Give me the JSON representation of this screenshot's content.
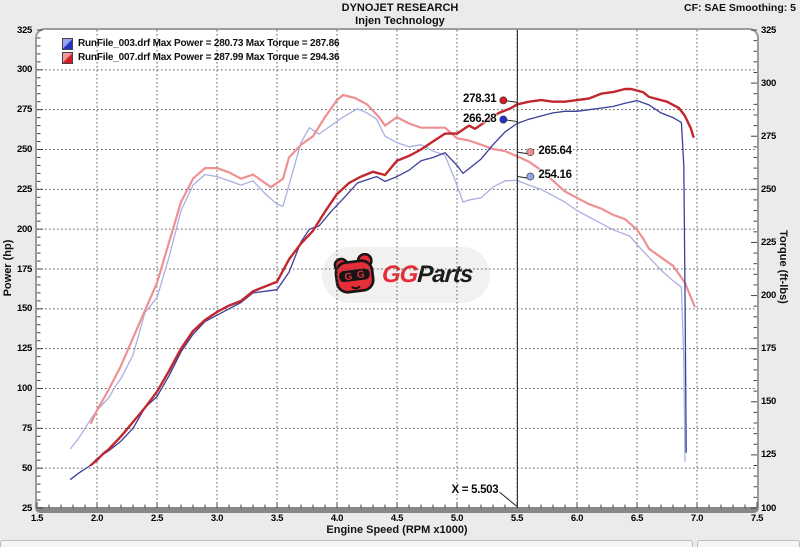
{
  "header": {
    "title": "DYNOJET RESEARCH",
    "subtitle": "Injen Technology",
    "correction_info": "CF: SAE  Smoothing: 5"
  },
  "legend": {
    "entries": [
      {
        "text": "RunFile_003.drf Max Power = 280.73 Max Torque = 287.86",
        "swatch_light": "#9aa6f2",
        "swatch_dark": "#2531c9"
      },
      {
        "text": "RunFile_007.drf Max Power = 287.99 Max Torque = 294.36",
        "swatch_light": "#f5989b",
        "swatch_dark": "#d21d22"
      }
    ]
  },
  "watermark": {
    "brand_first": "GG",
    "brand_second": "Parts",
    "pill_bg": "#f2f1ef",
    "red": "#e62e39",
    "black": "#1c1c1c"
  },
  "cursor": {
    "label": "X = 5.503",
    "x": 5.503,
    "readouts": [
      {
        "text": "278.31",
        "value": 278.31,
        "axis": "left",
        "side": "left",
        "color": "#d21d22"
      },
      {
        "text": "266.28",
        "value": 266.28,
        "axis": "left",
        "side": "left",
        "color": "#2531c9"
      },
      {
        "text": "265.64",
        "value": 265.64,
        "axis": "right",
        "side": "right",
        "color": "#ef8d8f"
      },
      {
        "text": "254.16",
        "value": 254.16,
        "axis": "right",
        "side": "right",
        "color": "#9aa2e8"
      }
    ]
  },
  "chart_data": {
    "type": "line",
    "title": "DYNOJET RESEARCH - Injen Technology",
    "grid": true,
    "x_axis": {
      "label": "Engine Speed (RPM x1000)",
      "min": 1.5,
      "max": 7.5,
      "tick_labels": [
        "1.5",
        "2.0",
        "2.5",
        "3.0",
        "3.5",
        "4.0",
        "4.5",
        "5.0",
        "5.5",
        "6.0",
        "6.5",
        "7.0",
        "7.5"
      ]
    },
    "y_axis_left": {
      "label": "Power (hp)",
      "min": 25,
      "max": 325,
      "tick_labels": [
        "25",
        "50",
        "75",
        "100",
        "125",
        "150",
        "175",
        "200",
        "225",
        "250",
        "275",
        "300",
        "325"
      ]
    },
    "y_axis_right": {
      "label": "Torque (ft-lbs)",
      "min": 100,
      "max": 325,
      "tick_labels": [
        "100",
        "125",
        "150",
        "175",
        "200",
        "225",
        "250",
        "275",
        "300",
        "325"
      ]
    },
    "series": [
      {
        "name": "RunFile_003 Torque",
        "axis": "right",
        "color": "#aab0e2",
        "width": 1.3,
        "points": [
          [
            1.78,
            128
          ],
          [
            1.85,
            133
          ],
          [
            1.95,
            142
          ],
          [
            2.0,
            146
          ],
          [
            2.1,
            152
          ],
          [
            2.15,
            157
          ],
          [
            2.2,
            161
          ],
          [
            2.3,
            172
          ],
          [
            2.4,
            192
          ],
          [
            2.5,
            199
          ],
          [
            2.6,
            218
          ],
          [
            2.7,
            240
          ],
          [
            2.8,
            252
          ],
          [
            2.9,
            257
          ],
          [
            3.0,
            256
          ],
          [
            3.1,
            254
          ],
          [
            3.2,
            252
          ],
          [
            3.3,
            254
          ],
          [
            3.4,
            248
          ],
          [
            3.5,
            243
          ],
          [
            3.55,
            242
          ],
          [
            3.6,
            252
          ],
          [
            3.7,
            272
          ],
          [
            3.77,
            279
          ],
          [
            3.85,
            276
          ],
          [
            3.95,
            280
          ],
          [
            4.05,
            284
          ],
          [
            4.17,
            287.9
          ],
          [
            4.25,
            286
          ],
          [
            4.33,
            283
          ],
          [
            4.4,
            275
          ],
          [
            4.5,
            272
          ],
          [
            4.6,
            270
          ],
          [
            4.7,
            271
          ],
          [
            4.8,
            268
          ],
          [
            4.9,
            266
          ],
          [
            5.0,
            252
          ],
          [
            5.05,
            244
          ],
          [
            5.1,
            245
          ],
          [
            5.2,
            246
          ],
          [
            5.3,
            251
          ],
          [
            5.4,
            254
          ],
          [
            5.5,
            254.2
          ],
          [
            5.6,
            252
          ],
          [
            5.7,
            250
          ],
          [
            5.8,
            247
          ],
          [
            5.9,
            244
          ],
          [
            6.0,
            240
          ],
          [
            6.1,
            237
          ],
          [
            6.2,
            234
          ],
          [
            6.3,
            231
          ],
          [
            6.44,
            228
          ],
          [
            6.5,
            224
          ],
          [
            6.6,
            218
          ],
          [
            6.7,
            212
          ],
          [
            6.8,
            207
          ],
          [
            6.87,
            204
          ],
          [
            6.89,
            170
          ],
          [
            6.9,
            122
          ]
        ]
      },
      {
        "name": "RunFile_007 Torque",
        "axis": "right",
        "color": "#ef9092",
        "width": 2.2,
        "points": [
          [
            1.95,
            140
          ],
          [
            2.0,
            146
          ],
          [
            2.1,
            156
          ],
          [
            2.2,
            167
          ],
          [
            2.3,
            180
          ],
          [
            2.4,
            193
          ],
          [
            2.5,
            206
          ],
          [
            2.6,
            225
          ],
          [
            2.7,
            244
          ],
          [
            2.8,
            255
          ],
          [
            2.9,
            260
          ],
          [
            3.0,
            260
          ],
          [
            3.1,
            258
          ],
          [
            3.2,
            255
          ],
          [
            3.3,
            257
          ],
          [
            3.4,
            253
          ],
          [
            3.45,
            251
          ],
          [
            3.55,
            255
          ],
          [
            3.6,
            265
          ],
          [
            3.7,
            271
          ],
          [
            3.8,
            275
          ],
          [
            3.9,
            284
          ],
          [
            4.0,
            292
          ],
          [
            4.05,
            294.4
          ],
          [
            4.15,
            293
          ],
          [
            4.25,
            290
          ],
          [
            4.35,
            284
          ],
          [
            4.4,
            280
          ],
          [
            4.5,
            284
          ],
          [
            4.6,
            281
          ],
          [
            4.7,
            279
          ],
          [
            4.8,
            279
          ],
          [
            4.9,
            279
          ],
          [
            5.0,
            274
          ],
          [
            5.1,
            273
          ],
          [
            5.2,
            271
          ],
          [
            5.3,
            269
          ],
          [
            5.4,
            268
          ],
          [
            5.5,
            265.6
          ],
          [
            5.6,
            263
          ],
          [
            5.7,
            259
          ],
          [
            5.8,
            254
          ],
          [
            5.9,
            249
          ],
          [
            6.0,
            246
          ],
          [
            6.1,
            243
          ],
          [
            6.2,
            241
          ],
          [
            6.3,
            238
          ],
          [
            6.4,
            236
          ],
          [
            6.5,
            231
          ],
          [
            6.55,
            227
          ],
          [
            6.6,
            222
          ],
          [
            6.7,
            218
          ],
          [
            6.8,
            214
          ],
          [
            6.9,
            206
          ],
          [
            6.95,
            199
          ],
          [
            6.98,
            195
          ]
        ]
      },
      {
        "name": "RunFile_003 Power",
        "axis": "left",
        "color": "#3b3f9a",
        "width": 1.3,
        "points": [
          [
            1.78,
            43
          ],
          [
            1.85,
            47
          ],
          [
            1.95,
            52
          ],
          [
            2.0,
            56
          ],
          [
            2.1,
            61
          ],
          [
            2.2,
            67
          ],
          [
            2.3,
            75
          ],
          [
            2.4,
            88
          ],
          [
            2.5,
            95
          ],
          [
            2.6,
            108
          ],
          [
            2.7,
            123
          ],
          [
            2.8,
            134
          ],
          [
            2.9,
            142
          ],
          [
            3.0,
            146
          ],
          [
            3.1,
            150
          ],
          [
            3.2,
            154
          ],
          [
            3.3,
            160
          ],
          [
            3.4,
            161
          ],
          [
            3.5,
            162
          ],
          [
            3.6,
            173
          ],
          [
            3.7,
            192
          ],
          [
            3.77,
            200
          ],
          [
            3.85,
            202
          ],
          [
            3.95,
            211
          ],
          [
            4.05,
            219
          ],
          [
            4.17,
            229
          ],
          [
            4.25,
            231
          ],
          [
            4.33,
            233
          ],
          [
            4.4,
            230
          ],
          [
            4.5,
            233
          ],
          [
            4.6,
            237
          ],
          [
            4.7,
            243
          ],
          [
            4.8,
            245
          ],
          [
            4.9,
            248
          ],
          [
            5.0,
            240
          ],
          [
            5.05,
            235
          ],
          [
            5.1,
            238
          ],
          [
            5.2,
            244
          ],
          [
            5.3,
            253
          ],
          [
            5.4,
            261
          ],
          [
            5.5,
            266.3
          ],
          [
            5.6,
            269
          ],
          [
            5.7,
            271
          ],
          [
            5.8,
            273
          ],
          [
            5.9,
            274
          ],
          [
            6.0,
            274
          ],
          [
            6.1,
            275
          ],
          [
            6.2,
            276
          ],
          [
            6.3,
            277
          ],
          [
            6.4,
            279
          ],
          [
            6.5,
            280.7
          ],
          [
            6.6,
            278
          ],
          [
            6.7,
            273
          ],
          [
            6.8,
            270
          ],
          [
            6.87,
            267
          ],
          [
            6.89,
            240
          ],
          [
            6.9,
            160
          ],
          [
            6.91,
            60
          ]
        ]
      },
      {
        "name": "RunFile_007 Power",
        "axis": "left",
        "color": "#c2272d",
        "width": 2.4,
        "points": [
          [
            1.95,
            52
          ],
          [
            2.0,
            55
          ],
          [
            2.05,
            59
          ],
          [
            2.1,
            62
          ],
          [
            2.2,
            70
          ],
          [
            2.3,
            79
          ],
          [
            2.4,
            88
          ],
          [
            2.5,
            98
          ],
          [
            2.6,
            111
          ],
          [
            2.7,
            125
          ],
          [
            2.8,
            136
          ],
          [
            2.9,
            143
          ],
          [
            3.0,
            148
          ],
          [
            3.1,
            152
          ],
          [
            3.2,
            155
          ],
          [
            3.3,
            161
          ],
          [
            3.4,
            164
          ],
          [
            3.5,
            167
          ],
          [
            3.6,
            181
          ],
          [
            3.7,
            191
          ],
          [
            3.8,
            199
          ],
          [
            3.9,
            211
          ],
          [
            4.0,
            222
          ],
          [
            4.1,
            229
          ],
          [
            4.2,
            233
          ],
          [
            4.3,
            236
          ],
          [
            4.4,
            234
          ],
          [
            4.5,
            243
          ],
          [
            4.6,
            246
          ],
          [
            4.7,
            250
          ],
          [
            4.8,
            255
          ],
          [
            4.9,
            260
          ],
          [
            5.0,
            260
          ],
          [
            5.1,
            265
          ],
          [
            5.15,
            263
          ],
          [
            5.25,
            268
          ],
          [
            5.35,
            273
          ],
          [
            5.45,
            276
          ],
          [
            5.5,
            278.3
          ],
          [
            5.6,
            280
          ],
          [
            5.7,
            281
          ],
          [
            5.8,
            280
          ],
          [
            5.9,
            280
          ],
          [
            6.0,
            281
          ],
          [
            6.1,
            282
          ],
          [
            6.2,
            285
          ],
          [
            6.3,
            286
          ],
          [
            6.4,
            288
          ],
          [
            6.45,
            288
          ],
          [
            6.55,
            286
          ],
          [
            6.6,
            283
          ],
          [
            6.7,
            281
          ],
          [
            6.75,
            280
          ],
          [
            6.85,
            276
          ],
          [
            6.9,
            271
          ],
          [
            6.95,
            263
          ],
          [
            6.97,
            258
          ]
        ]
      }
    ]
  }
}
